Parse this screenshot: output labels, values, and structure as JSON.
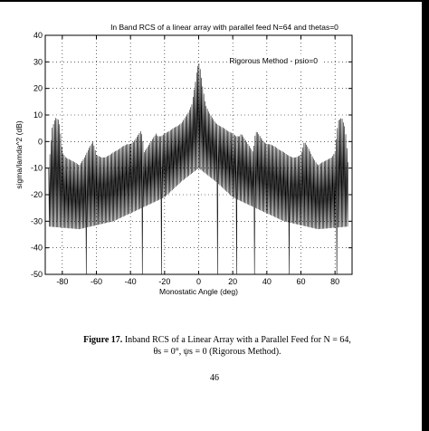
{
  "page": {
    "number": "46"
  },
  "caption": {
    "label": "Figure 17.",
    "line1": "Inband RCS of a Linear Array with a Parallel Feed for N = 64,",
    "line2": "θs = 0°, ψs = 0  (Rigorous Method)."
  },
  "chart_data": {
    "type": "line",
    "title": "In Band RCS of a linear array with parallel feed N=64 and thetas=0",
    "xlabel": "Monostatic Angle (deg)",
    "ylabel": "sigma/lamda^2 (dB)",
    "xlim": [
      -90,
      90
    ],
    "ylim": [
      -50,
      40
    ],
    "xticks": [
      -80,
      -60,
      -40,
      -20,
      0,
      20,
      40,
      60,
      80
    ],
    "yticks": [
      -50,
      -40,
      -30,
      -20,
      -10,
      0,
      10,
      20,
      30,
      40
    ],
    "grid": true,
    "legend": {
      "position": "top-right"
    },
    "annotation": "Rigorous Method - psio=0",
    "series": [
      {
        "name": "Rigorous Method - psio=0",
        "color": "#000000",
        "upper_envelope": {
          "x": [
            -88,
            -86,
            -85,
            -84,
            -82,
            -81,
            -80,
            -78,
            -75,
            -72,
            -70,
            -67,
            -64,
            -62,
            -60,
            -57,
            -55,
            -52,
            -50,
            -47,
            -45,
            -42,
            -40,
            -38,
            -36,
            -34,
            -33,
            -32,
            -30,
            -28,
            -26,
            -25,
            -24,
            -22,
            -20,
            -17,
            -15,
            -12,
            -10,
            -8,
            -6,
            -4,
            -3,
            -2,
            -1,
            0,
            1,
            2,
            3,
            4,
            6,
            8,
            10,
            12,
            15,
            17,
            20,
            22,
            24,
            25,
            26,
            28,
            30,
            32,
            33,
            34,
            36,
            38,
            40,
            42,
            45,
            47,
            50,
            52,
            55,
            57,
            60,
            62,
            64,
            67,
            70,
            72,
            75,
            78,
            80,
            81,
            82,
            84,
            85,
            86,
            88
          ],
          "y": [
            -10,
            5,
            7,
            9,
            8,
            3,
            -4,
            -6,
            -7,
            -8,
            -9,
            -6,
            -2,
            0,
            -5,
            -6,
            -6,
            -5,
            -4,
            -3,
            -2,
            -1,
            -1,
            0,
            2,
            4,
            2,
            -4,
            -2,
            0,
            2,
            3,
            2,
            2,
            3,
            4,
            5,
            6,
            7,
            9,
            11,
            14,
            18,
            22,
            27,
            30,
            27,
            22,
            18,
            14,
            11,
            9,
            7,
            6,
            5,
            4,
            3,
            2,
            2,
            3,
            2,
            0,
            -2,
            -4,
            2,
            4,
            2,
            0,
            -1,
            -1,
            -2,
            -3,
            -4,
            -5,
            -6,
            -6,
            -5,
            0,
            -2,
            -6,
            -9,
            -8,
            -7,
            -6,
            -4,
            3,
            8,
            9,
            7,
            5,
            -10
          ]
        },
        "floor": {
          "x": [
            -88,
            -70,
            -50,
            -40,
            -30,
            -20,
            -10,
            0,
            10,
            20,
            30,
            40,
            50,
            70,
            88
          ],
          "y": [
            -32,
            -33,
            -30,
            -27,
            -24,
            -21,
            -15,
            -10,
            -15,
            -21,
            -24,
            -27,
            -30,
            -33,
            -32
          ]
        },
        "deep_nulls_x": [
          -81,
          -66,
          -53,
          -33,
          -22,
          -11,
          11,
          22,
          33,
          53,
          66,
          81
        ]
      }
    ]
  }
}
